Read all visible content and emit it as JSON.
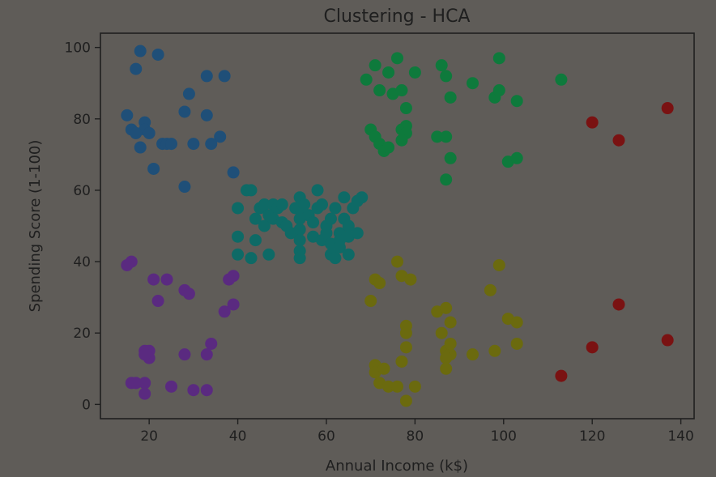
{
  "chart_data": {
    "type": "scatter",
    "title": "Clustering - HCA",
    "xlabel": "Annual Income (k$)",
    "ylabel": "Spending Score (1-100)",
    "xlim": [
      9,
      143
    ],
    "ylim": [
      -4,
      104
    ],
    "xticks": [
      20,
      40,
      60,
      80,
      100,
      120,
      140
    ],
    "yticks": [
      0,
      20,
      40,
      60,
      80,
      100
    ],
    "grid": false,
    "background": "#5f5c58",
    "series": [
      {
        "color": "#1f4f78",
        "points": [
          [
            18,
            99
          ],
          [
            22,
            98
          ],
          [
            17,
            94
          ],
          [
            33,
            92
          ],
          [
            37,
            92
          ],
          [
            29,
            87
          ],
          [
            15,
            81
          ],
          [
            28,
            82
          ],
          [
            33,
            81
          ],
          [
            19,
            79
          ],
          [
            19,
            77
          ],
          [
            16,
            77
          ],
          [
            17,
            76
          ],
          [
            20,
            76
          ],
          [
            36,
            75
          ],
          [
            23,
            73
          ],
          [
            24,
            73
          ],
          [
            25,
            73
          ],
          [
            30,
            73
          ],
          [
            34,
            73
          ],
          [
            18,
            72
          ],
          [
            21,
            66
          ],
          [
            39,
            65
          ],
          [
            28,
            61
          ]
        ]
      },
      {
        "color": "#5a2a80",
        "points": [
          [
            16,
            40
          ],
          [
            15,
            39
          ],
          [
            21,
            35
          ],
          [
            24,
            35
          ],
          [
            28,
            32
          ],
          [
            29,
            31
          ],
          [
            22,
            29
          ],
          [
            39,
            36
          ],
          [
            38,
            35
          ],
          [
            39,
            28
          ],
          [
            37,
            26
          ],
          [
            34,
            17
          ],
          [
            33,
            14
          ],
          [
            28,
            14
          ],
          [
            19,
            15
          ],
          [
            20,
            15
          ],
          [
            20,
            13
          ],
          [
            19,
            14
          ],
          [
            16,
            6
          ],
          [
            17,
            6
          ],
          [
            19,
            6
          ],
          [
            25,
            5
          ],
          [
            30,
            4
          ],
          [
            33,
            4
          ],
          [
            19,
            3
          ]
        ]
      },
      {
        "color": "#0e6a66",
        "points": [
          [
            40,
            55
          ],
          [
            42,
            60
          ],
          [
            43,
            60
          ],
          [
            44,
            52
          ],
          [
            45,
            55
          ],
          [
            46,
            56
          ],
          [
            46,
            50
          ],
          [
            47,
            53
          ],
          [
            48,
            52
          ],
          [
            48,
            56
          ],
          [
            49,
            55
          ],
          [
            50,
            51
          ],
          [
            50,
            56
          ],
          [
            51,
            50
          ],
          [
            52,
            48
          ],
          [
            53,
            55
          ],
          [
            54,
            58
          ],
          [
            54,
            55
          ],
          [
            54,
            52
          ],
          [
            54,
            49
          ],
          [
            54,
            46
          ],
          [
            54,
            43
          ],
          [
            54,
            41
          ],
          [
            55,
            56
          ],
          [
            56,
            53
          ],
          [
            57,
            51
          ],
          [
            57,
            47
          ],
          [
            58,
            60
          ],
          [
            58,
            55
          ],
          [
            59,
            56
          ],
          [
            59,
            46
          ],
          [
            60,
            50
          ],
          [
            60,
            48
          ],
          [
            61,
            52
          ],
          [
            61,
            42
          ],
          [
            61,
            45
          ],
          [
            62,
            55
          ],
          [
            62,
            41
          ],
          [
            63,
            48
          ],
          [
            63,
            46
          ],
          [
            63,
            44
          ],
          [
            64,
            58
          ],
          [
            64,
            52
          ],
          [
            65,
            50
          ],
          [
            65,
            47
          ],
          [
            65,
            42
          ],
          [
            66,
            55
          ],
          [
            67,
            57
          ],
          [
            67,
            48
          ],
          [
            68,
            58
          ],
          [
            40,
            42
          ],
          [
            40,
            47
          ],
          [
            43,
            41
          ],
          [
            44,
            46
          ],
          [
            47,
            42
          ]
        ]
      },
      {
        "color": "#0e7a3c",
        "points": [
          [
            69,
            91
          ],
          [
            71,
            95
          ],
          [
            72,
            88
          ],
          [
            74,
            93
          ],
          [
            75,
            87
          ],
          [
            76,
            97
          ],
          [
            77,
            88
          ],
          [
            77,
            77
          ],
          [
            78,
            83
          ],
          [
            78,
            78
          ],
          [
            78,
            76
          ],
          [
            80,
            93
          ],
          [
            86,
            95
          ],
          [
            87,
            92
          ],
          [
            88,
            86
          ],
          [
            87,
            75
          ],
          [
            85,
            75
          ],
          [
            88,
            69
          ],
          [
            87,
            63
          ],
          [
            93,
            90
          ],
          [
            98,
            86
          ],
          [
            99,
            88
          ],
          [
            99,
            97
          ],
          [
            103,
            85
          ],
          [
            101,
            68
          ],
          [
            103,
            69
          ],
          [
            113,
            91
          ],
          [
            70,
            77
          ],
          [
            71,
            75
          ],
          [
            72,
            73
          ],
          [
            73,
            71
          ],
          [
            74,
            72
          ],
          [
            77,
            74
          ]
        ]
      },
      {
        "color": "#6b6a0e",
        "points": [
          [
            71,
            35
          ],
          [
            72,
            34
          ],
          [
            70,
            29
          ],
          [
            76,
            40
          ],
          [
            77,
            36
          ],
          [
            79,
            35
          ],
          [
            85,
            26
          ],
          [
            87,
            27
          ],
          [
            86,
            20
          ],
          [
            88,
            23
          ],
          [
            87,
            15
          ],
          [
            88,
            14
          ],
          [
            87,
            13
          ],
          [
            87,
            10
          ],
          [
            78,
            22
          ],
          [
            78,
            20
          ],
          [
            78,
            16
          ],
          [
            77,
            12
          ],
          [
            71,
            11
          ],
          [
            71,
            9
          ],
          [
            73,
            10
          ],
          [
            72,
            6
          ],
          [
            74,
            5
          ],
          [
            76,
            5
          ],
          [
            80,
            5
          ],
          [
            78,
            1
          ],
          [
            93,
            14
          ],
          [
            97,
            32
          ],
          [
            99,
            39
          ],
          [
            101,
            24
          ],
          [
            103,
            23
          ],
          [
            103,
            17
          ],
          [
            98,
            15
          ],
          [
            88,
            17
          ]
        ]
      },
      {
        "color": "#7a1212",
        "points": [
          [
            120,
            79
          ],
          [
            126,
            74
          ],
          [
            137,
            83
          ],
          [
            126,
            28
          ],
          [
            137,
            18
          ],
          [
            120,
            16
          ],
          [
            113,
            8
          ]
        ]
      }
    ]
  }
}
